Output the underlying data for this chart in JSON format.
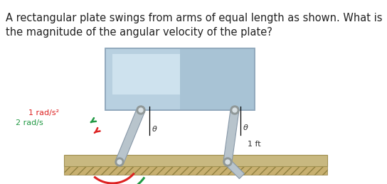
{
  "title_line1": "A rectangular plate swings from arms of equal length as shown. What is",
  "title_line2": "the magnitude of the angular velocity of the plate?",
  "title_fontsize": 10.5,
  "bg_color": "#ffffff",
  "plate_color_top": "#c8dce8",
  "plate_color_bot": "#8aaec8",
  "plate_edge": "#90a8bc",
  "ground_color": "#c8b880",
  "ground_hatch": "#b8a060",
  "arm_color": "#b8c4cc",
  "arm_edge": "#8898a8",
  "joint_outer": "#909898",
  "joint_inner": "#d8e0e4",
  "arc1_color": "#dd2222",
  "arc2_color": "#229944",
  "label_color": "#333333",
  "label_rad_s2_text": "1 rad/s²",
  "label_rad_s_text": "2 rad/s",
  "label_theta": "θ",
  "label_1ft": "1 ft"
}
